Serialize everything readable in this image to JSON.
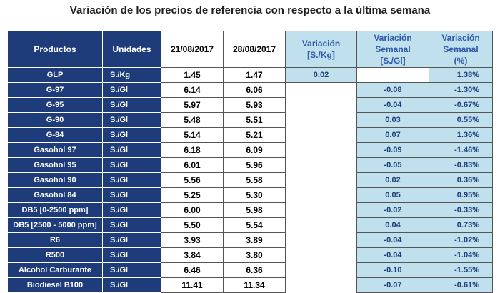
{
  "title": "Variación de los precios de referencia con respecto a la última semana",
  "headers": {
    "products": "Productos",
    "units": "Unidades",
    "date1": "21/08/2017",
    "date2": "28/08/2017",
    "variation_l1": "Variación",
    "variation_l2": "[S./Kg]",
    "weekly_l1": "Variación",
    "weekly_l2": "Semanal",
    "weekly_l3": "[S./Gl]",
    "pct_l1": "Variación",
    "pct_l2": "Semanal",
    "pct_l3": "(%)"
  },
  "rows": [
    {
      "product": "GLP",
      "unit": "S./Kg",
      "d1": "1.45",
      "d2": "1.47",
      "var": "0.02",
      "weekly": "",
      "pct": "1.38%"
    },
    {
      "product": "G-97",
      "unit": "S./Gl",
      "d1": "6.14",
      "d2": "6.06",
      "var": "",
      "weekly": "-0.08",
      "pct": "-1.30%"
    },
    {
      "product": "G-95",
      "unit": "S./Gl",
      "d1": "5.97",
      "d2": "5.93",
      "var": "",
      "weekly": "-0.04",
      "pct": "-0.67%"
    },
    {
      "product": "G-90",
      "unit": "S./Gl",
      "d1": "5.48",
      "d2": "5.51",
      "var": "",
      "weekly": "0.03",
      "pct": "0.55%"
    },
    {
      "product": "G-84",
      "unit": "S./Gl",
      "d1": "5.14",
      "d2": "5.21",
      "var": "",
      "weekly": "0.07",
      "pct": "1.36%"
    },
    {
      "product": "Gasohol 97",
      "unit": "S./Gl",
      "d1": "6.18",
      "d2": "6.09",
      "var": "",
      "weekly": "-0.09",
      "pct": "-1.46%"
    },
    {
      "product": "Gasohol 95",
      "unit": "S./Gl",
      "d1": "6.01",
      "d2": "5.96",
      "var": "",
      "weekly": "-0.05",
      "pct": "-0.83%"
    },
    {
      "product": "Gasohol 90",
      "unit": "S./Gl",
      "d1": "5.56",
      "d2": "5.58",
      "var": "",
      "weekly": "0.02",
      "pct": "0.36%"
    },
    {
      "product": "Gasohol 84",
      "unit": "S./Gl",
      "d1": "5.25",
      "d2": "5.30",
      "var": "",
      "weekly": "0.05",
      "pct": "0.95%"
    },
    {
      "product": "DB5 [0-2500 ppm]",
      "unit": "S./Gl",
      "d1": "6.00",
      "d2": "5.98",
      "var": "",
      "weekly": "-0.02",
      "pct": "-0.33%"
    },
    {
      "product": "DB5 [2500 - 5000 ppm]",
      "unit": "S./Gl",
      "d1": "5.50",
      "d2": "5.54",
      "var": "",
      "weekly": "0.04",
      "pct": "0.73%"
    },
    {
      "product": "R6",
      "unit": "S./Gl",
      "d1": "3.93",
      "d2": "3.89",
      "var": "",
      "weekly": "-0.04",
      "pct": "-1.02%"
    },
    {
      "product": "R500",
      "unit": "S./Gl",
      "d1": "3.84",
      "d2": "3.80",
      "var": "",
      "weekly": "-0.04",
      "pct": "-1.04%"
    },
    {
      "product": "Alcohol Carburante",
      "unit": "S./Gl",
      "d1": "6.46",
      "d2": "6.36",
      "var": "",
      "weekly": "-0.10",
      "pct": "-1.55%"
    },
    {
      "product": "Biodiesel B100",
      "unit": "S./Gl",
      "d1": "11.41",
      "d2": "11.34",
      "var": "",
      "weekly": "-0.07",
      "pct": "-0.61%"
    }
  ]
}
